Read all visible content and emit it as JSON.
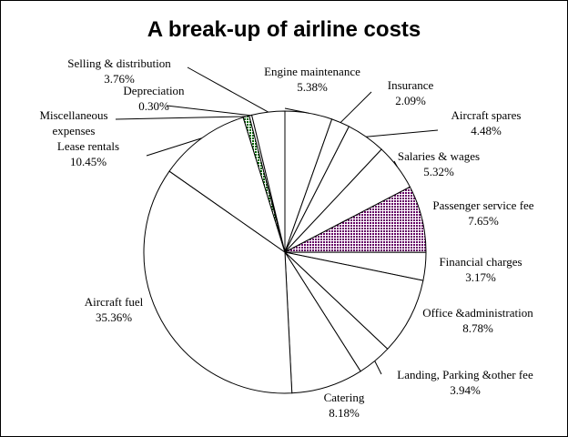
{
  "chart_data": {
    "type": "pie",
    "title": "A break-up of airline costs",
    "start_angle_deg": 90,
    "direction": "clockwise",
    "slices": [
      {
        "name": "Engine maintenance",
        "value": 5.38,
        "label": "5.38%",
        "fill": "#ffffff"
      },
      {
        "name": "Insurance",
        "value": 2.09,
        "label": "2.09%",
        "fill": "#ffffff"
      },
      {
        "name": "Aircraft spares",
        "value": 4.48,
        "label": "4.48%",
        "fill": "#ffffff"
      },
      {
        "name": "Salaries & wages",
        "value": 5.32,
        "label": "5.32%",
        "fill": "#ffffff"
      },
      {
        "name": "Passenger service fee",
        "value": 7.65,
        "label": "7.65%",
        "fill": "pattern-purple"
      },
      {
        "name": "Financial charges",
        "value": 3.17,
        "label": "3.17%",
        "fill": "#ffffff"
      },
      {
        "name": "Office &administration",
        "value": 8.78,
        "label": "8.78%",
        "fill": "#ffffff"
      },
      {
        "name": "Landing, Parking &other fee",
        "value": 3.94,
        "label": "3.94%",
        "fill": "#ffffff"
      },
      {
        "name": "Catering",
        "value": 8.18,
        "label": "8.18%",
        "fill": "#ffffff"
      },
      {
        "name": "Aircraft fuel",
        "value": 35.36,
        "label": "35.36%",
        "fill": "#ffffff"
      },
      {
        "name": "Lease rentals",
        "value": 10.45,
        "label": "10.45%",
        "fill": "#ffffff"
      },
      {
        "name": "Miscellaneous expenses",
        "value": 0.7,
        "label": "",
        "fill": "pattern-green"
      },
      {
        "name": "Depreciation",
        "value": 0.3,
        "label": "0.30%",
        "fill": "#ffffff"
      },
      {
        "name": "Selling & distribution",
        "value": 3.76,
        "label": "3.76%",
        "fill": "#ffffff"
      }
    ],
    "colors": {
      "outline": "#000000",
      "pattern_purple": "#660066",
      "pattern_green": "#006600",
      "background": "#ffffff"
    }
  }
}
